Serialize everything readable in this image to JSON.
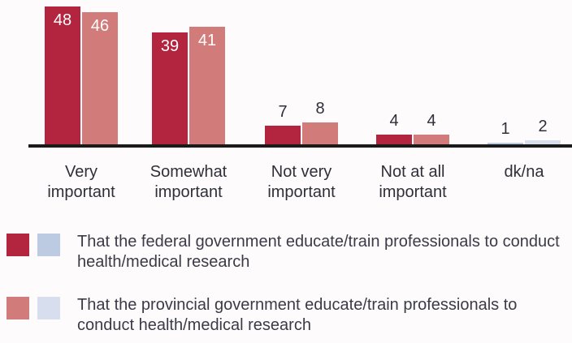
{
  "chart_data": {
    "type": "bar",
    "categories": [
      "Very important",
      "Somewhat important",
      "Not very important",
      "Not at all important",
      "dk/na"
    ],
    "series": [
      {
        "name": "That the federal government educate/train professionals to conduct health/medical research",
        "color": "#b3243f",
        "alt_color": "#bccbe2",
        "values": [
          48,
          39,
          7,
          4,
          1
        ]
      },
      {
        "name": "That the provincial government educate/train professionals to conduct health/medical research",
        "color": "#d27b7b",
        "alt_color": "#d7dfee",
        "values": [
          46,
          41,
          8,
          4,
          2
        ]
      }
    ],
    "ylim": [
      0,
      48
    ]
  }
}
